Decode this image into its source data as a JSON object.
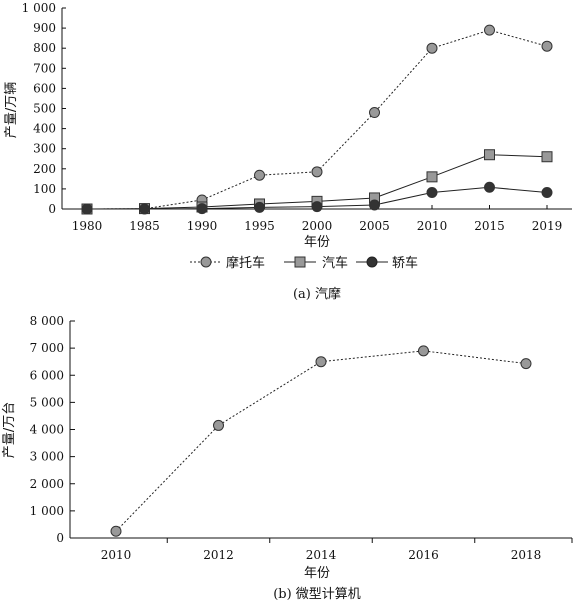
{
  "chart_data": [
    {
      "type": "line",
      "caption": "(a) 汽摩",
      "xlabel": "年份",
      "ylabel": "产量/万辆",
      "categories": [
        "1980",
        "1985",
        "1990",
        "1995",
        "2000",
        "2005",
        "2010",
        "2015",
        "2019"
      ],
      "ylim": [
        0,
        1000
      ],
      "yticks": [
        0,
        100,
        200,
        300,
        400,
        500,
        600,
        700,
        800,
        900,
        1000
      ],
      "ytick_labels": [
        "0",
        "100",
        "200",
        "300",
        "400",
        "500",
        "600",
        "700",
        "800",
        "900",
        "1 000"
      ],
      "legend_position": "bottom",
      "series": [
        {
          "name": "摩托车",
          "values": [
            0,
            1,
            45,
            168,
            185,
            480,
            800,
            890,
            810
          ],
          "marker": "circle",
          "fill": "#999999",
          "line": "dotted"
        },
        {
          "name": "汽车",
          "values": [
            0,
            2,
            10,
            25,
            38,
            55,
            160,
            270,
            260
          ],
          "marker": "square",
          "fill": "#999999",
          "line": "solid"
        },
        {
          "name": "轿车",
          "values": [
            0,
            0,
            2,
            8,
            12,
            20,
            82,
            108,
            82
          ],
          "marker": "circle",
          "fill": "#333333",
          "line": "solid"
        }
      ]
    },
    {
      "type": "line",
      "caption": "(b) 微型计算机",
      "xlabel": "年份",
      "ylabel": "产量/万台",
      "categories": [
        "2010",
        "2012",
        "2014",
        "2016",
        "2018"
      ],
      "ylim": [
        0,
        8000
      ],
      "yticks": [
        0,
        1000,
        2000,
        3000,
        4000,
        5000,
        6000,
        7000,
        8000
      ],
      "ytick_labels": [
        "0",
        "1 000",
        "2 000",
        "3 000",
        "4 000",
        "5 000",
        "6 000",
        "7 000",
        "8 000"
      ],
      "series": [
        {
          "values": [
            250,
            4150,
            6500,
            6900,
            6430
          ],
          "marker": "circle",
          "fill": "#999999",
          "line": "dotted"
        }
      ]
    }
  ]
}
